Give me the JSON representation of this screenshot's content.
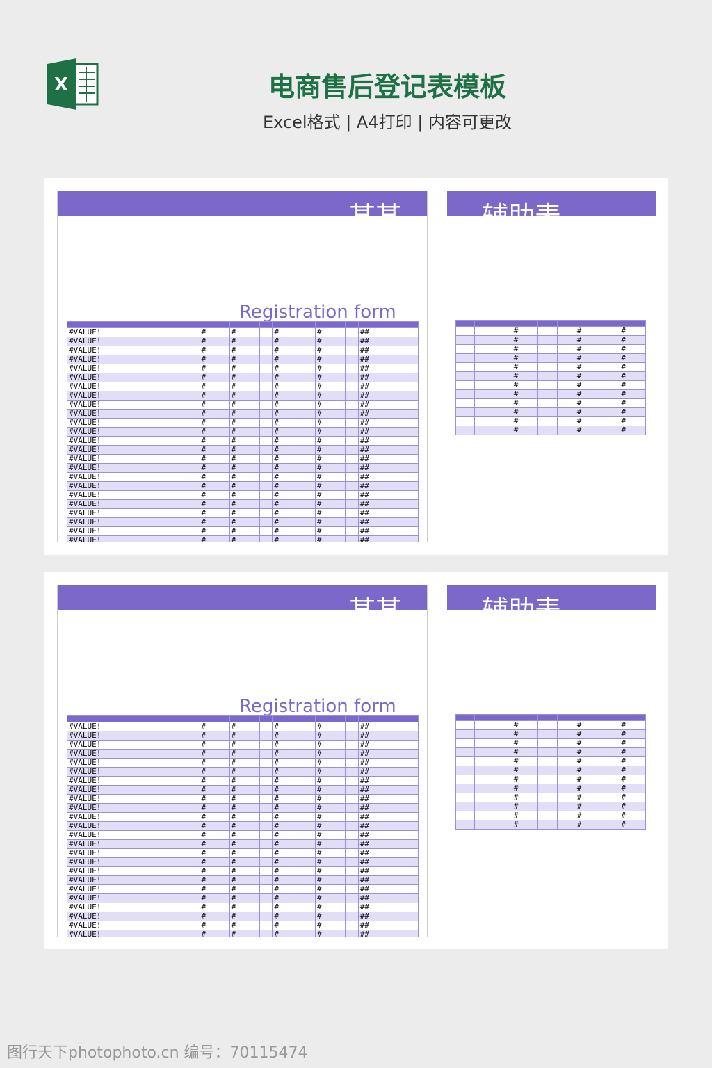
{
  "header": {
    "title": "电商售后登记表模板",
    "subtitle": "Excel格式 | A4打印 | 内容可更改"
  },
  "sheet": {
    "main_title": "某某",
    "side_title": "辅助表",
    "form_label": "Registration form",
    "cells": [
      "#VALUE!",
      "#",
      "##"
    ]
  },
  "watermark": "图行天下photophoto.cn 编号：70115474"
}
